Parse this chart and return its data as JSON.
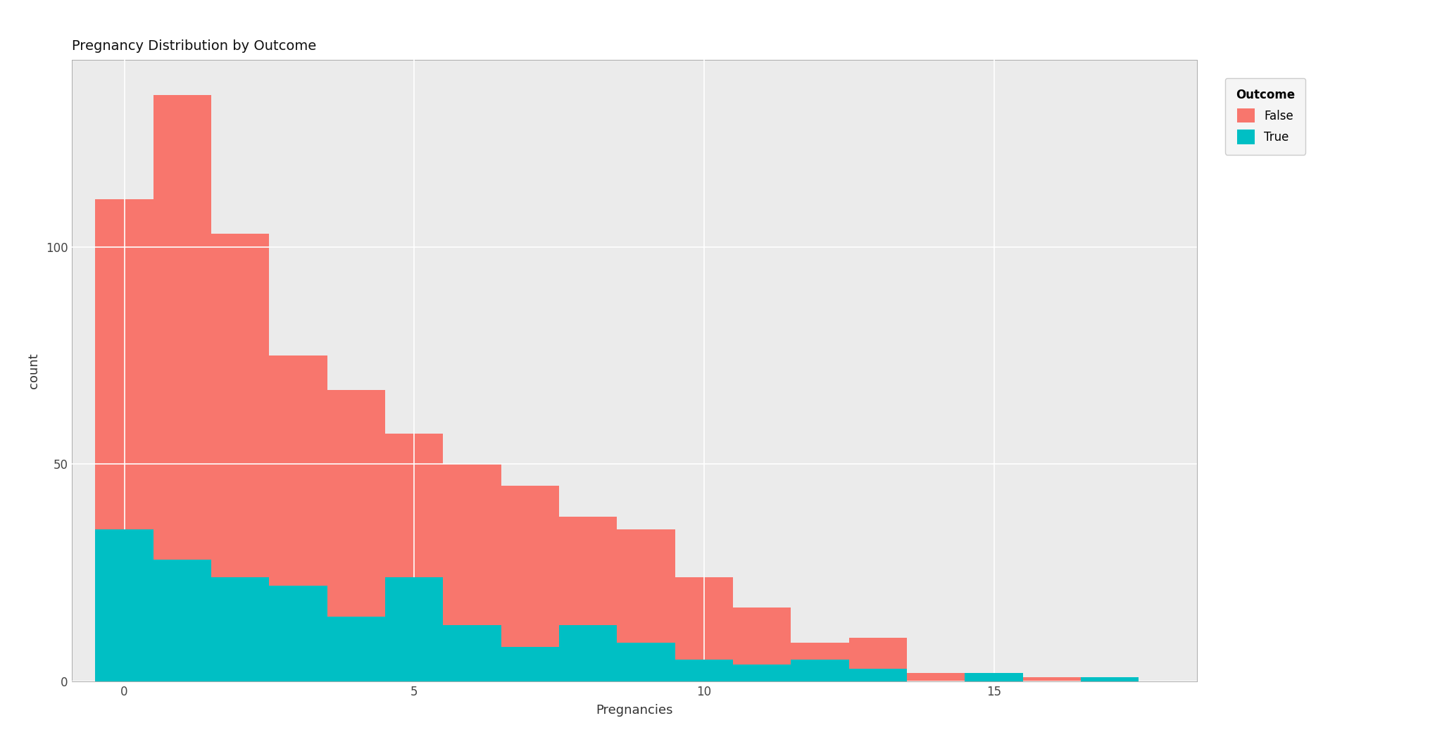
{
  "title": "Pregnancy Distribution by Outcome",
  "xlabel": "Pregnancies",
  "ylabel": "count",
  "color_false": "#F8766D",
  "color_true": "#00BFC4",
  "alpha_false": 1.0,
  "alpha_true": 1.0,
  "background_color": "#FFFFFF",
  "panel_background": "#EBEBEB",
  "grid_color": "#FFFFFF",
  "xlim": [
    -0.9,
    18.5
  ],
  "ylim": [
    0,
    143
  ],
  "yticks": [
    0,
    50,
    100
  ],
  "xticks": [
    0,
    5,
    10,
    15
  ],
  "bin_edges": [
    -0.5,
    0.5,
    1.5,
    2.5,
    3.5,
    4.5,
    5.5,
    6.5,
    7.5,
    8.5,
    9.5,
    10.5,
    11.5,
    12.5,
    13.5,
    14.5,
    15.5,
    16.5,
    17.5
  ],
  "false_counts": [
    111,
    135,
    103,
    75,
    67,
    57,
    50,
    45,
    38,
    35,
    24,
    17,
    9,
    10,
    2,
    0,
    1,
    0
  ],
  "true_counts": [
    35,
    28,
    24,
    22,
    15,
    24,
    13,
    8,
    13,
    9,
    5,
    4,
    5,
    3,
    0,
    2,
    0,
    1
  ],
  "legend_title": "Outcome",
  "legend_labels": [
    "False",
    "True"
  ],
  "title_fontsize": 14,
  "axis_label_fontsize": 13,
  "tick_fontsize": 12,
  "legend_fontsize": 12,
  "legend_title_fontsize": 12
}
